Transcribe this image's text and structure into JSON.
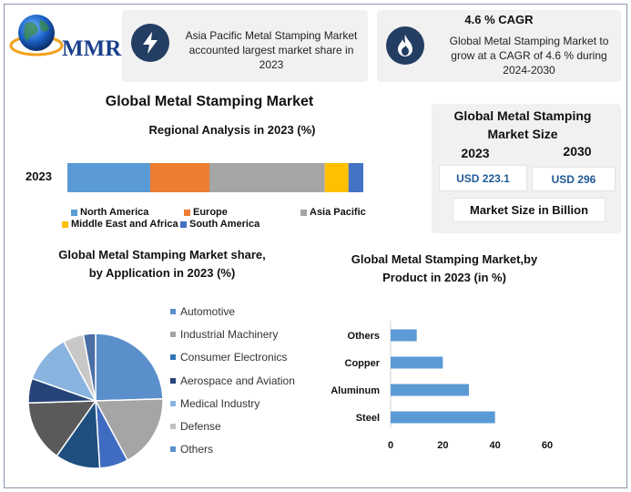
{
  "brand": {
    "name": "MMR"
  },
  "card1": {
    "text": "Asia Pacific Metal Stamping Market accounted largest market share in 2023",
    "icon": "lightning-icon"
  },
  "card2": {
    "title": "4.6 % CAGR",
    "text": "Global Metal Stamping Market to grow at a CAGR of 4.6 % during 2024-2030",
    "icon": "flame-icon"
  },
  "main_title": "Global Metal Stamping Market",
  "size_card": {
    "title": "Global Metal Stamping Market Size",
    "year1": "2023",
    "year2": "2030",
    "value1": "USD 223.1",
    "value2": "USD 296",
    "footer": "Market Size in Billion"
  },
  "colors": {
    "dark_navy": "#243e63",
    "accent_blue": "#1f5a96"
  },
  "chart_data": [
    {
      "type": "bar",
      "orientation": "horizontal-stacked",
      "title": "Regional Analysis in 2023 (%)",
      "categories": [
        "2023"
      ],
      "series": [
        {
          "name": "North America",
          "values": [
            28
          ],
          "color": "#5b9bd5"
        },
        {
          "name": "Europe",
          "values": [
            20
          ],
          "color": "#ed7d31"
        },
        {
          "name": "Asia Pacific",
          "values": [
            39
          ],
          "color": "#a5a5a5"
        },
        {
          "name": "Middle East and Africa",
          "values": [
            8
          ],
          "color": "#ffc000"
        },
        {
          "name": "South America",
          "values": [
            5
          ],
          "color": "#4472c4"
        }
      ]
    },
    {
      "type": "pie",
      "title": "Global Metal Stamping Market share, by Application in 2023  (%)",
      "labels": [
        "Automotive",
        "Industrial Machinery",
        "Consumer Electronics",
        "Aerospace and Aviation",
        "Medical Industry",
        "Defense",
        "Others"
      ],
      "slices": [
        {
          "name": "Automotive",
          "value": 25,
          "color": "#5b8fcb"
        },
        {
          "name": "Industrial Machinery",
          "value": 18,
          "color": "#a5a5a5"
        },
        {
          "name": "Consumer Electronics",
          "value": 7,
          "color": "#3f6cc0"
        },
        {
          "name": "",
          "value": 11,
          "color": "#1f4f7f"
        },
        {
          "name": "",
          "value": 15,
          "color": "#5a5a5a"
        },
        {
          "name": "Aerospace and Aviation",
          "value": 6,
          "color": "#264478"
        },
        {
          "name": "Medical Industry",
          "value": 12,
          "color": "#8ab4e0"
        },
        {
          "name": "Defense",
          "value": 5,
          "color": "#c8c8c8"
        },
        {
          "name": "Others",
          "value": 3,
          "color": "#4a6fa5"
        }
      ],
      "legend_colors": [
        "#5b8fcb",
        "#a5a5a5",
        "#2e75b6",
        "#264478",
        "#8ab4e0",
        "#c0c0c0",
        "#5b8fcb"
      ]
    },
    {
      "type": "bar",
      "orientation": "horizontal",
      "title": "Global Metal Stamping Market,by Product in 2023 (in %)",
      "categories": [
        "Others",
        "Copper",
        "Aluminum",
        "Steel"
      ],
      "values": [
        10,
        20,
        30,
        40
      ],
      "xlim": [
        0,
        60
      ],
      "xticks": [
        "0",
        "20",
        "40",
        "60"
      ],
      "color": "#5b9bd5"
    }
  ]
}
